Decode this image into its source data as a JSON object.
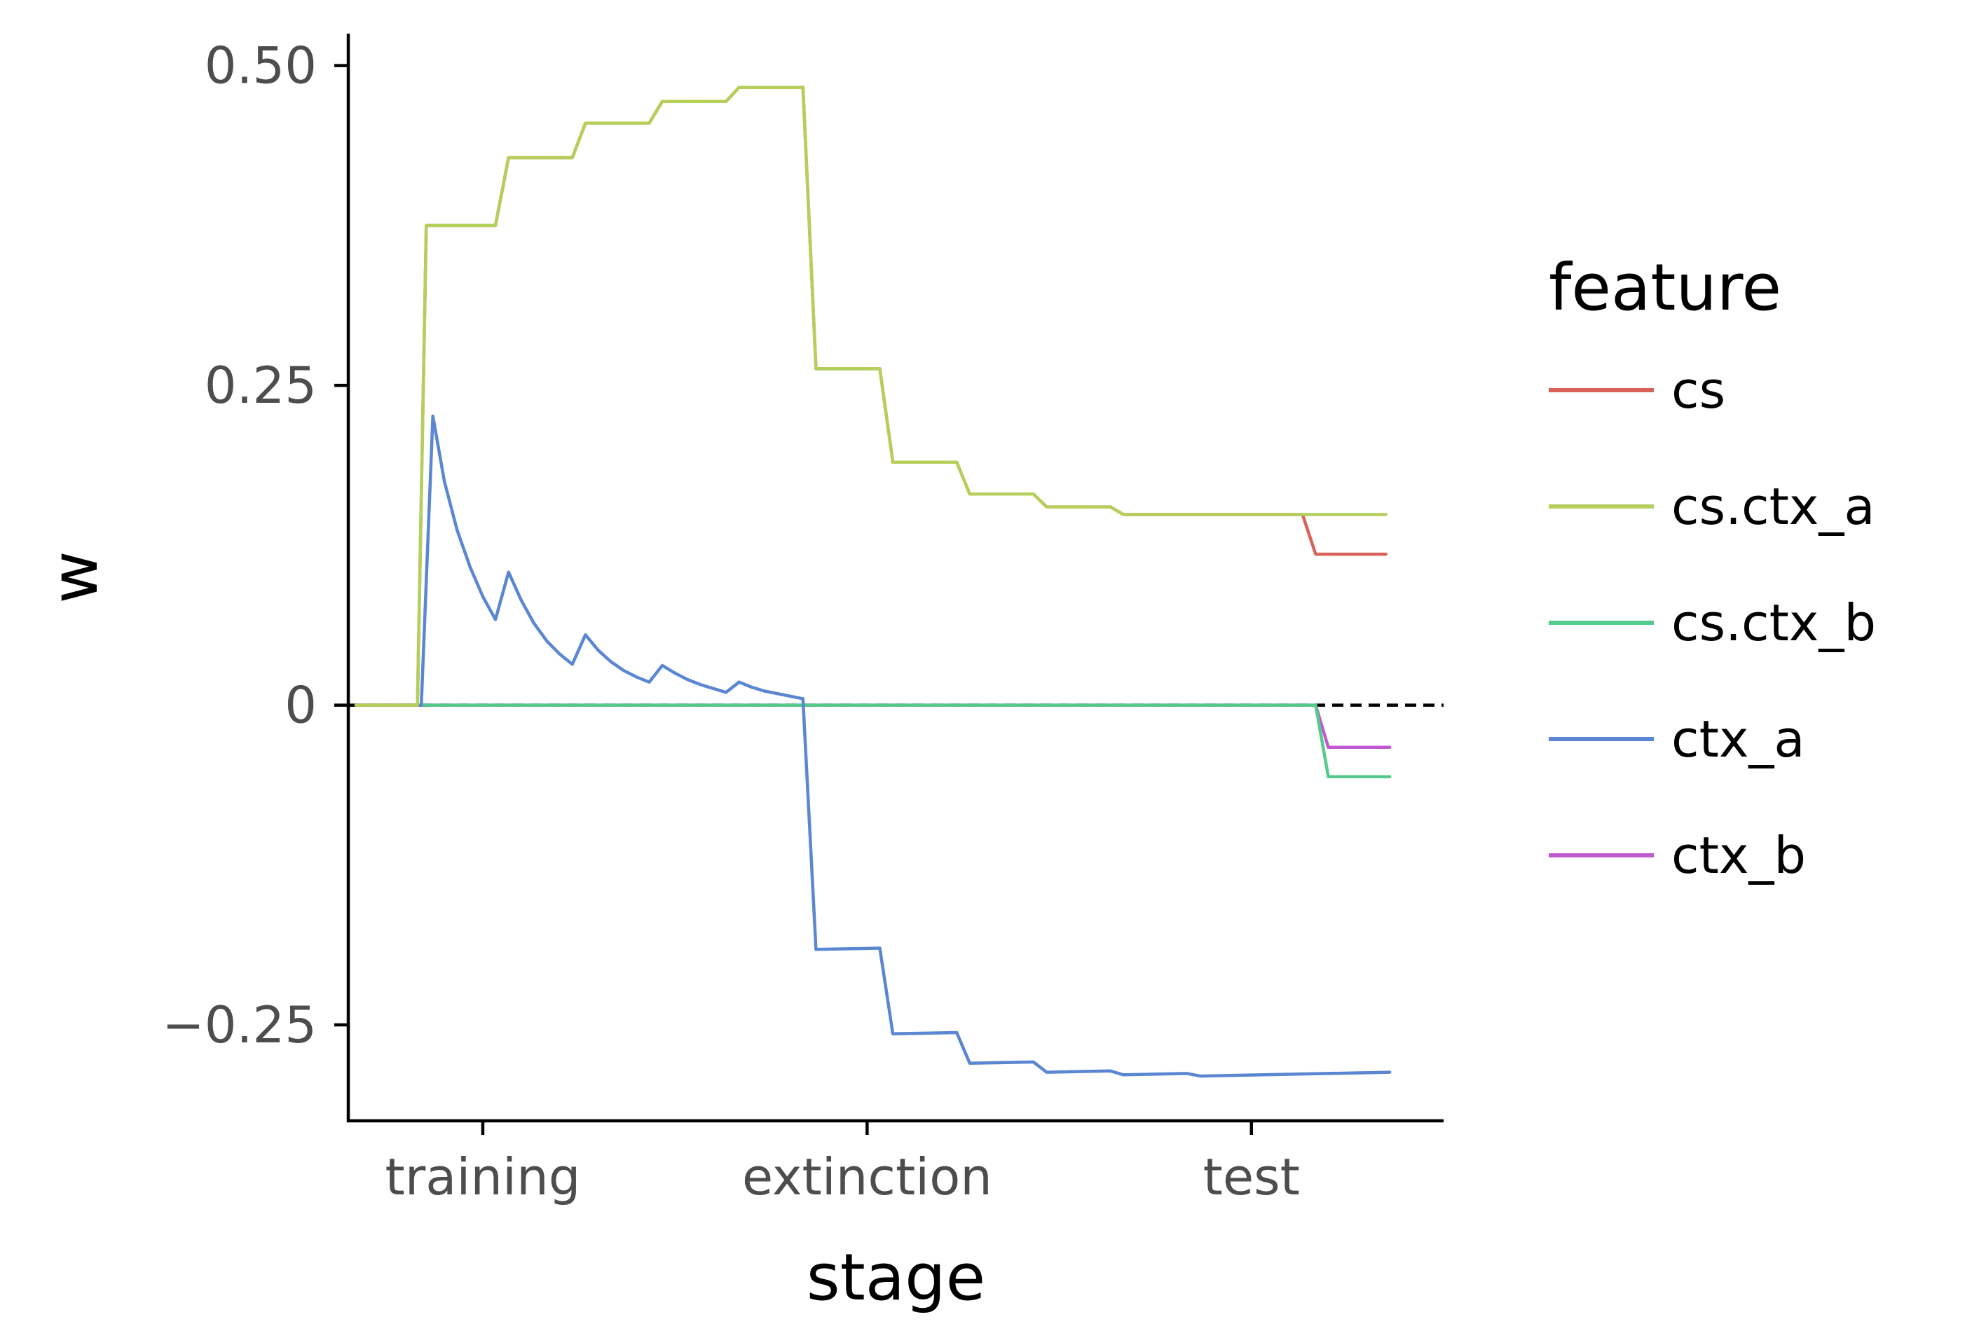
{
  "chart_data": {
    "type": "line",
    "xlabel": "stage",
    "ylabel": "w",
    "x_tick_labels": [
      "training",
      "extinction",
      "test"
    ],
    "y_ticks": [
      -0.25,
      0,
      0.25,
      0.5
    ],
    "y_tick_labels": [
      "−0.25",
      "0",
      "0.25",
      "0.50"
    ],
    "xlim": [
      0.65,
      3.5
    ],
    "ylim": [
      -0.325,
      0.525
    ],
    "reference_line": {
      "y": 0,
      "style": "dashed",
      "color": "#000000"
    },
    "legend": {
      "title": "feature",
      "position": "right"
    },
    "grid": false,
    "series": [
      {
        "name": "cs",
        "color": "#d8625a",
        "x": [
          0.67,
          0.83,
          0.853,
          1.033,
          1.067,
          1.233,
          1.267,
          1.433,
          1.467,
          1.633,
          1.667,
          1.833,
          1.867,
          2.033,
          2.067,
          2.233,
          2.267,
          2.433,
          2.467,
          2.633,
          2.667,
          2.833,
          2.867,
          3.033,
          3.067,
          3.133,
          3.167,
          3.35
        ],
        "y": [
          0,
          0,
          0.375,
          0.375,
          0.428,
          0.428,
          0.455,
          0.455,
          0.472,
          0.472,
          0.483,
          0.483,
          0.263,
          0.263,
          0.19,
          0.19,
          0.165,
          0.165,
          0.155,
          0.155,
          0.149,
          0.149,
          0.149,
          0.149,
          0.149,
          0.149,
          0.118,
          0.118
        ]
      },
      {
        "name": "cs.ctx_a",
        "color": "#b5cf5b",
        "x": [
          0.67,
          0.83,
          0.853,
          1.033,
          1.067,
          1.233,
          1.267,
          1.433,
          1.467,
          1.633,
          1.667,
          1.833,
          1.867,
          2.033,
          2.067,
          2.233,
          2.267,
          2.433,
          2.467,
          2.633,
          2.667,
          2.833,
          2.867,
          3.033,
          3.067,
          3.133,
          3.35
        ],
        "y": [
          0,
          0,
          0.375,
          0.375,
          0.428,
          0.428,
          0.455,
          0.455,
          0.472,
          0.472,
          0.483,
          0.483,
          0.263,
          0.263,
          0.19,
          0.19,
          0.165,
          0.165,
          0.155,
          0.155,
          0.149,
          0.149,
          0.149,
          0.149,
          0.149,
          0.149,
          0.149
        ]
      },
      {
        "name": "cs.ctx_b",
        "color": "#55cb8b",
        "x": [
          0.67,
          3.167,
          3.2,
          3.36
        ],
        "y": [
          0,
          0,
          -0.056,
          -0.056
        ]
      },
      {
        "name": "ctx_a",
        "color": "#5a86d2",
        "x": [
          0.67,
          0.84,
          0.87,
          0.9,
          0.933,
          0.967,
          1.0,
          1.033,
          1.067,
          1.1,
          1.133,
          1.167,
          1.2,
          1.233,
          1.267,
          1.3,
          1.333,
          1.367,
          1.4,
          1.433,
          1.467,
          1.5,
          1.533,
          1.567,
          1.6,
          1.633,
          1.667,
          1.7,
          1.733,
          1.767,
          1.8,
          1.833,
          1.867,
          2.033,
          2.067,
          2.233,
          2.267,
          2.433,
          2.467,
          2.633,
          2.667,
          2.833,
          2.867,
          3.36
        ],
        "y": [
          0,
          0,
          0.226,
          0.175,
          0.137,
          0.108,
          0.085,
          0.067,
          0.104,
          0.082,
          0.064,
          0.05,
          0.04,
          0.032,
          0.055,
          0.043,
          0.034,
          0.027,
          0.022,
          0.018,
          0.031,
          0.025,
          0.02,
          0.016,
          0.013,
          0.01,
          0.018,
          0.014,
          0.011,
          0.009,
          0.007,
          0.005,
          -0.191,
          -0.19,
          -0.257,
          -0.256,
          -0.28,
          -0.279,
          -0.287,
          -0.286,
          -0.289,
          -0.288,
          -0.29,
          -0.287
        ]
      },
      {
        "name": "ctx_b",
        "color": "#c05ad2",
        "x": [
          0.67,
          3.167,
          3.2,
          3.36
        ],
        "y": [
          0,
          0,
          -0.033,
          -0.033
        ]
      }
    ]
  }
}
